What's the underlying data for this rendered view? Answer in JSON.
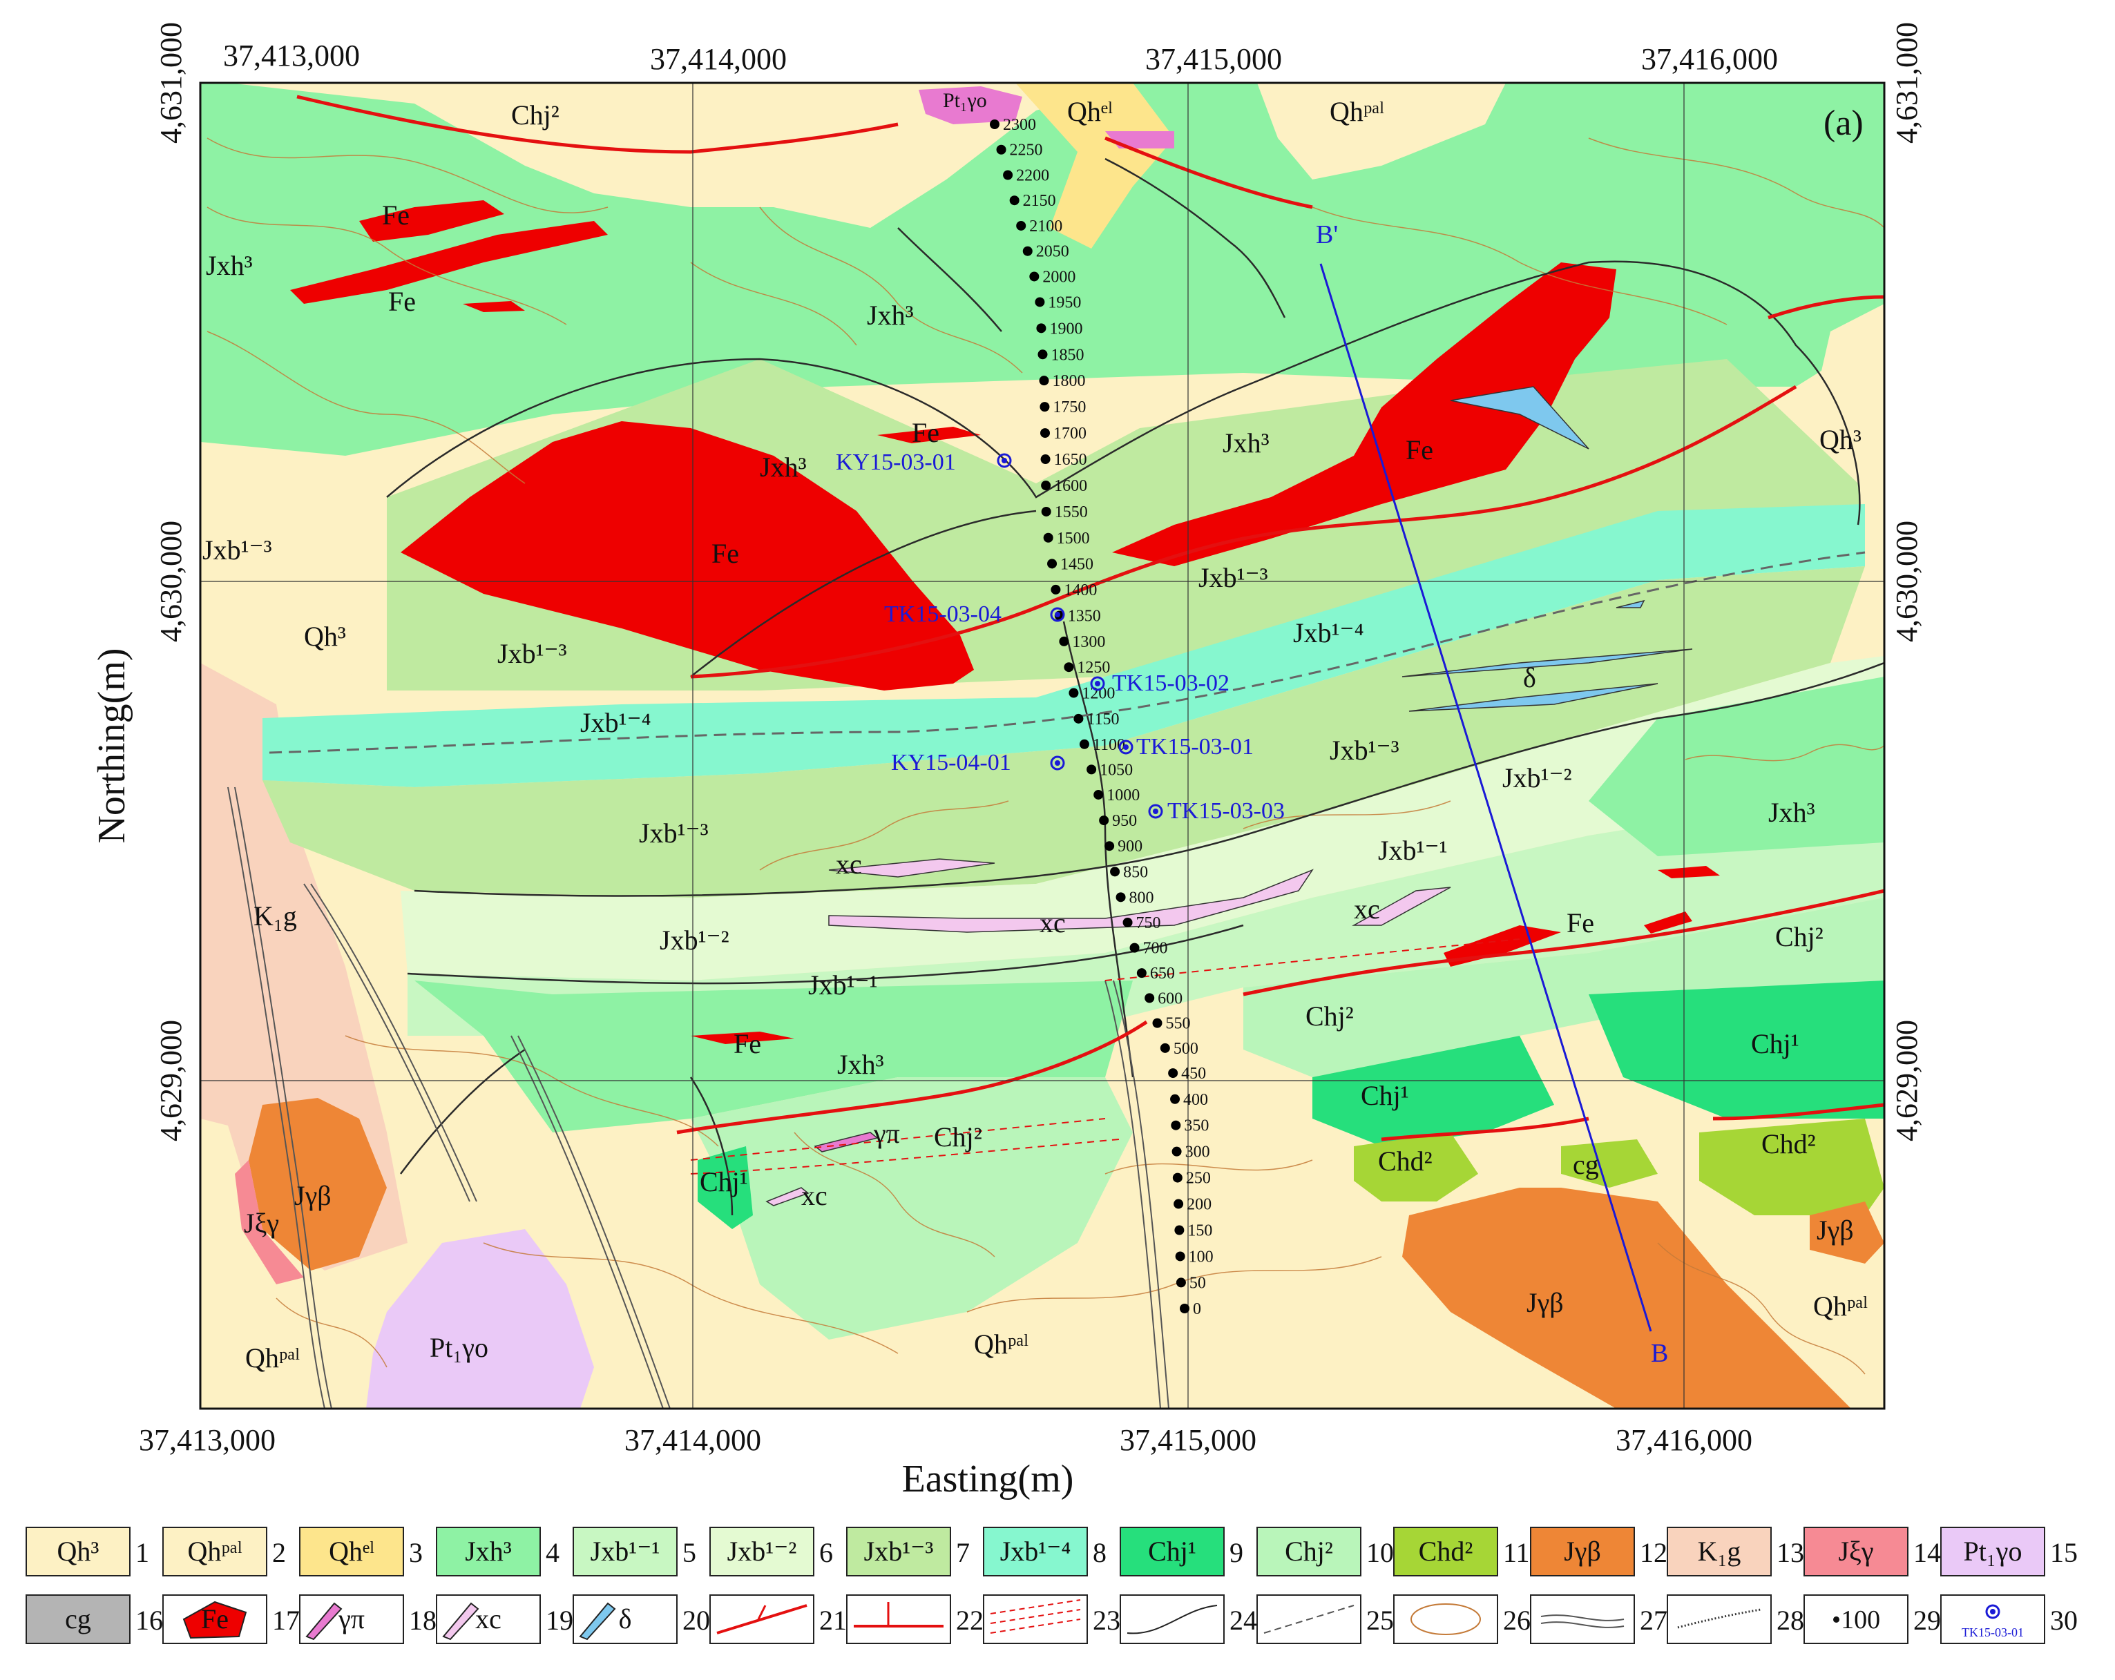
{
  "panel_label": "(a)",
  "axes": {
    "x_title": "Easting(m)",
    "y_title": "Northing(m)",
    "x_ticks": [
      "37,413,000",
      "37,414,000",
      "37,415,000",
      "37,416,000"
    ],
    "y_ticks": [
      "4,631,000",
      "4,630,000",
      "4,629,000"
    ]
  },
  "section_ends": {
    "start": "B",
    "end": "B'"
  },
  "units": {
    "Fe": "Fe",
    "Qh3": "Qh³",
    "Qhpal": "Qhᵖᵃˡ",
    "Qhel": "Qhᵉˡ",
    "Jxh3": "Jxh³",
    "Jxb11": "Jxb¹⁻¹",
    "Jxb12": "Jxb¹⁻²",
    "Jxb13": "Jxb¹⁻³",
    "Jxb14": "Jxb¹⁻⁴",
    "Chj1": "Chj¹",
    "Chj2": "Chj²",
    "Chd2": "Chd²",
    "Jgb": "Jγβ",
    "K1g": "K₁g",
    "Jxg": "Jξγ",
    "Pt1go": "Pt₁γo",
    "cg": "cg",
    "gp": "γπ",
    "xc": "xc",
    "delta": "δ"
  },
  "samples": [
    "KY15-03-01",
    "TK15-03-04",
    "TK15-03-02",
    "TK15-03-01",
    "KY15-04-01",
    "TK15-03-03"
  ],
  "stations": [
    "2300",
    "2250",
    "2200",
    "2150",
    "2100",
    "2050",
    "2000",
    "1950",
    "1900",
    "1850",
    "1800",
    "1750",
    "1700",
    "1650",
    "1600",
    "1550",
    "1500",
    "1450",
    "1400",
    "1350",
    "1300",
    "1250",
    "1200",
    "1150",
    "1100",
    "1050",
    "1000",
    "950",
    "900",
    "850",
    "800",
    "750",
    "700",
    "650",
    "600",
    "550",
    "500",
    "450",
    "400",
    "350",
    "300",
    "250",
    "200",
    "150",
    "100",
    "50",
    "0"
  ],
  "legend": [
    {
      "text": "Qh³",
      "num": "1"
    },
    {
      "text": "Qhᵖᵃˡ",
      "num": "2"
    },
    {
      "text": "Qhᵉˡ",
      "num": "3"
    },
    {
      "text": "Jxh³",
      "num": "4"
    },
    {
      "text": "Jxb¹⁻¹",
      "num": "5"
    },
    {
      "text": "Jxb¹⁻²",
      "num": "6"
    },
    {
      "text": "Jxb¹⁻³",
      "num": "7"
    },
    {
      "text": "Jxb¹⁻⁴",
      "num": "8"
    },
    {
      "text": "Chj¹",
      "num": "9"
    },
    {
      "text": "Chj²",
      "num": "10"
    },
    {
      "text": "Chd²",
      "num": "11"
    },
    {
      "text": "Jγβ",
      "num": "12"
    },
    {
      "text": "K₁g",
      "num": "13"
    },
    {
      "text": "Jξγ",
      "num": "14"
    },
    {
      "text": "Pt₁γo",
      "num": "15"
    },
    {
      "text": "cg",
      "num": "16"
    },
    {
      "text": "Fe",
      "num": "17"
    },
    {
      "text": "γπ",
      "num": "18"
    },
    {
      "text": "xc",
      "num": "19"
    },
    {
      "text": "δ",
      "num": "20"
    },
    {
      "text": "",
      "num": "21"
    },
    {
      "text": "",
      "num": "22"
    },
    {
      "text": "",
      "num": "23"
    },
    {
      "text": "",
      "num": "24"
    },
    {
      "text": "",
      "num": "25"
    },
    {
      "text": "",
      "num": "26"
    },
    {
      "text": "",
      "num": "27"
    },
    {
      "text": "",
      "num": "28"
    },
    {
      "text": "•100",
      "num": "29"
    },
    {
      "text": "TK15-03-01",
      "num": "30"
    }
  ],
  "colors": {
    "Qh3": "#fdf1c4",
    "Qhpal": "#fdf1c4",
    "Qhel": "#fde58c",
    "Jxh3": "#8ef2a4",
    "Jxb11": "#c8f7c2",
    "Jxb12": "#e4fad2",
    "Jxb13": "#bfeaa0",
    "Jxb14": "#86f7cf",
    "Chj1": "#26df7c",
    "Chj2": "#b9f5ba",
    "Chd2": "#a6d636",
    "Jgb": "#ee8636",
    "K1g": "#f9d3bd",
    "Jxg": "#f68a94",
    "Pt1go": "#eac9f7",
    "cg": "#b4b4b4",
    "Fe": "#ee0000",
    "gp": "#e87ad0",
    "xc": "#f3c8ee",
    "delta": "#7ec8ee",
    "fault": "#e41010",
    "contour": "#c47a38",
    "boundary": "#2a2a2a",
    "sample": "#1a1ad6"
  }
}
